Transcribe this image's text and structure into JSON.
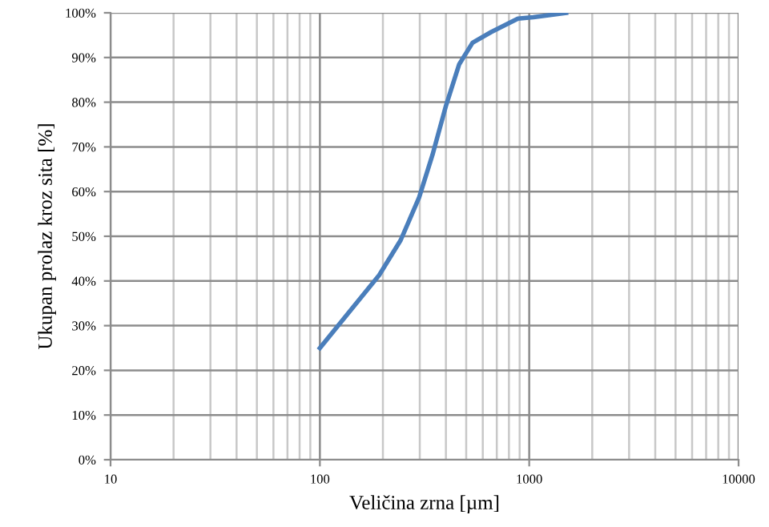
{
  "chart_data": {
    "type": "line",
    "xlabel": "Veličina zrna [µm]",
    "ylabel": "Ukupan prolaz kroz sita [%]",
    "log": "x",
    "xlim": [
      10,
      10000
    ],
    "xticks": [
      10,
      100,
      1000,
      10000
    ],
    "ylim": [
      0,
      100
    ],
    "yticks": [
      {
        "value": 0,
        "label": "0%"
      },
      {
        "value": 10,
        "label": "10%"
      },
      {
        "value": 20,
        "label": "20%"
      },
      {
        "value": 30,
        "label": "30%"
      },
      {
        "value": 40,
        "label": "40%"
      },
      {
        "value": 50,
        "label": "50%"
      },
      {
        "value": 60,
        "label": "60%"
      },
      {
        "value": 70,
        "label": "70%"
      },
      {
        "value": 80,
        "label": "80%"
      },
      {
        "value": 90,
        "label": "90%"
      },
      {
        "value": 100,
        "label": "100%"
      }
    ],
    "grid": true,
    "marker": "none",
    "line_style": "solid",
    "series": [
      {
        "color": "#4a7ebb",
        "x": [
          100,
          192,
          243,
          298,
          345,
          399,
          463,
          536,
          658,
          883,
          1047,
          1500
        ],
        "values": [
          25,
          41.3,
          49.1,
          58.7,
          68.2,
          79,
          88.5,
          93.3,
          95.7,
          98.7,
          99,
          100
        ]
      }
    ]
  }
}
